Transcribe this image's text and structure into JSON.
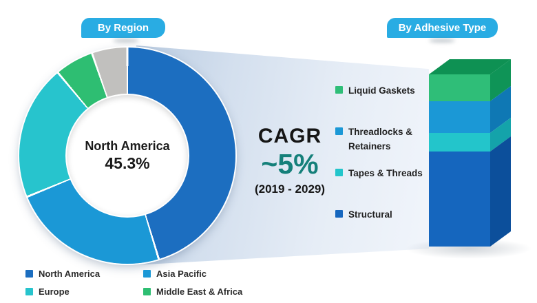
{
  "buttons": {
    "by_region": "By Region",
    "by_adhesive_type": "By Adhesive Type"
  },
  "cagr": {
    "label": "CAGR",
    "value": "~5%",
    "period": "(2019 - 2029)",
    "value_color": "#15807A"
  },
  "donut_center": {
    "label": "North America",
    "value": "45.3%"
  },
  "colors": {
    "button_bg": "#29ACE3",
    "button_text": "#FFFFFF",
    "beam_start": "#B9CBE0",
    "beam_end": "#F1F5FB",
    "text_dark": "#1E1E1E",
    "background": "#FFFFFF"
  },
  "chart_data": [
    {
      "type": "pie",
      "subtype": "donut",
      "title": "By Region",
      "center_label": "North America",
      "center_value": "45.3%",
      "units": "percent share",
      "legend_position": "bottom",
      "segments": [
        {
          "label": "North America",
          "value": 45.3,
          "color": "#1C6EC0",
          "in_legend": true
        },
        {
          "label": "Asia Pacific",
          "value": 23.5,
          "color": "#1B98D6",
          "in_legend": true
        },
        {
          "label": "Europe",
          "value": 20.1,
          "color": "#27C4CD",
          "in_legend": true
        },
        {
          "label": "Middle East & Africa",
          "value": 5.8,
          "color": "#2EBE72",
          "in_legend": true
        },
        {
          "label": "",
          "value": 5.3,
          "color": "#C1C0BE",
          "in_legend": false
        }
      ]
    },
    {
      "type": "bar",
      "subtype": "stacked-3d-column",
      "title": "By Adhesive Type",
      "units": "share of column height, percent (estimated)",
      "legend_position": "left",
      "top_face_color": "#0E9153",
      "segments": [
        {
          "label": "Liquid Gaskets",
          "value": 15.6,
          "color": "#2FBE78",
          "side_color": "#0F9457"
        },
        {
          "label": "Threadlocks & Retainers",
          "value": 18.4,
          "color": "#1B98D6",
          "side_color": "#0F78B4"
        },
        {
          "label": "Tapes & Threads",
          "value": 10.8,
          "color": "#23C5CB",
          "side_color": "#14A3AA"
        },
        {
          "label": "Structural",
          "value": 55.2,
          "color": "#1566BE",
          "side_color": "#0C4F9B"
        }
      ]
    }
  ]
}
